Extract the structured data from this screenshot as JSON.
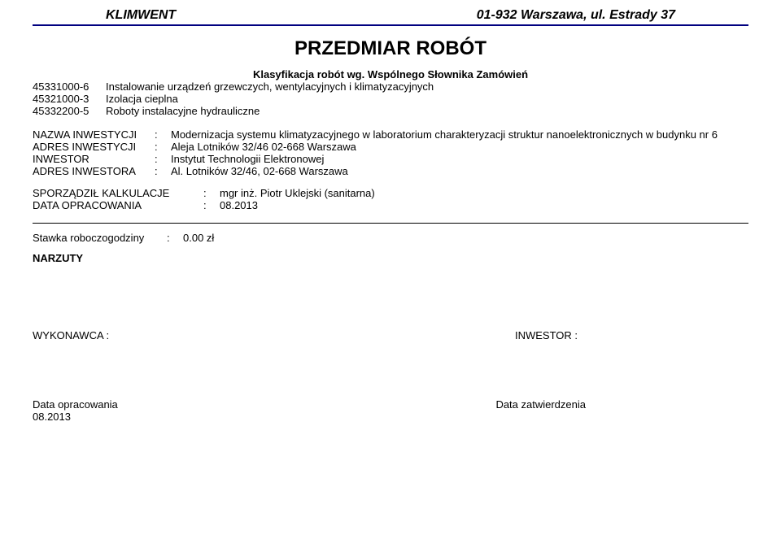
{
  "header": {
    "company": "KLIMWENT",
    "address": "01-932 Warszawa, ul. Estrady 37",
    "rule_color": "#000080"
  },
  "title": "PRZEDMIAR ROBÓT",
  "subtitle": "Klasyfikacja robót wg. Wspólnego Słownika Zamówień",
  "classification": [
    {
      "code": "45331000-6",
      "desc": "Instalowanie urządzeń grzewczych, wentylacyjnych i klimatyzacyjnych"
    },
    {
      "code": "45321000-3",
      "desc": "Izolacja cieplna"
    },
    {
      "code": "45332200-5",
      "desc": "Roboty instalacyjne hydrauliczne"
    }
  ],
  "investment": {
    "name_label": "NAZWA INWESTYCJI",
    "name_value": "Modernizacja systemu klimatyzacyjnego w laboratorium charakteryzacji struktur nanoelektronicznych w budynku nr 6",
    "address_label": "ADRES INWESTYCJI",
    "address_value": "Aleja Lotników 32/46 02-668 Warszawa",
    "investor_label": "INWESTOR",
    "investor_value": "Instytut Technologii Elektronowej",
    "investor_addr_label": "ADRES INWESTORA",
    "investor_addr_value": "Al. Lotników 32/46, 02-668 Warszawa"
  },
  "authorship": {
    "prepared_label": "SPORZĄDZIŁ KALKULACJE",
    "prepared_value": "mgr inż. Piotr Uklejski (sanitarna)",
    "date_label": "DATA OPRACOWANIA",
    "date_value": "08.2013"
  },
  "rate": {
    "label": "Stawka roboczogodziny",
    "value": "0.00 zł"
  },
  "narzuty_label": "NARZUTY",
  "parties": {
    "contractor_label": "WYKONAWCA :",
    "investor_label": "INWESTOR :"
  },
  "dates_footer": {
    "prepared_label": "Data opracowania",
    "prepared_value": "08.2013",
    "approved_label": "Data zatwierdzenia"
  }
}
